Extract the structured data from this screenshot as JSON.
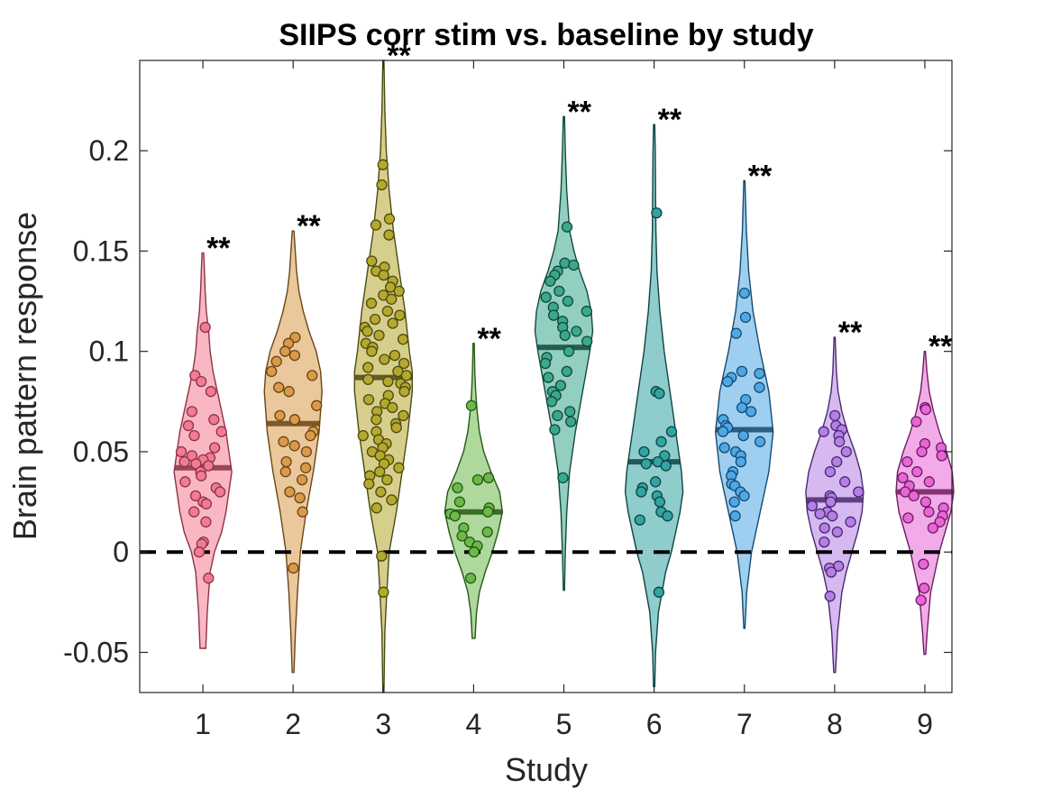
{
  "chart_data": {
    "type": "violin",
    "title": "SIIPS corr stim vs. baseline by study",
    "xlabel": "Study",
    "ylabel": "Brain pattern response",
    "ylim": [
      -0.07,
      0.245
    ],
    "xlim": [
      0.3,
      9.3
    ],
    "yticks": [
      -0.05,
      0,
      0.05,
      0.1,
      0.15,
      0.2
    ],
    "ytick_labels": [
      "-0.05",
      "0",
      "0.05",
      "0.1",
      "0.15",
      "0.2"
    ],
    "categories": [
      "1",
      "2",
      "3",
      "4",
      "5",
      "6",
      "7",
      "8",
      "9"
    ],
    "reference_line": {
      "y": 0,
      "style": "dashed"
    },
    "grid": false,
    "legend": "none",
    "studies": [
      {
        "name": "1",
        "color": "#f27b92",
        "dark": "#8c3347",
        "mean": 0.042,
        "sig": "**",
        "range": [
          -0.048,
          0.149
        ],
        "density": [
          [
            -0.048,
            0.1
          ],
          [
            -0.03,
            0.15
          ],
          [
            -0.01,
            0.25
          ],
          [
            0.0,
            0.4
          ],
          [
            0.01,
            0.65
          ],
          [
            0.02,
            0.8
          ],
          [
            0.03,
            0.9
          ],
          [
            0.04,
            1.0
          ],
          [
            0.05,
            0.9
          ],
          [
            0.06,
            0.8
          ],
          [
            0.07,
            0.65
          ],
          [
            0.08,
            0.5
          ],
          [
            0.09,
            0.35
          ],
          [
            0.1,
            0.25
          ],
          [
            0.11,
            0.2
          ],
          [
            0.12,
            0.12
          ],
          [
            0.13,
            0.08
          ],
          [
            0.149,
            0.03
          ]
        ],
        "points": [
          0.112,
          0.088,
          0.085,
          0.08,
          0.07,
          0.066,
          0.063,
          0.06,
          0.058,
          0.052,
          0.05,
          0.048,
          0.047,
          0.046,
          0.045,
          0.044,
          0.043,
          0.04,
          0.038,
          0.035,
          0.032,
          0.03,
          0.028,
          0.025,
          0.024,
          0.02,
          0.015,
          0.005,
          0.004,
          0.0,
          -0.013
        ]
      },
      {
        "name": "2",
        "color": "#d99b4a",
        "dark": "#6b4514",
        "mean": 0.064,
        "sig": "**",
        "range": [
          -0.06,
          0.16
        ],
        "density": [
          [
            -0.06,
            0.03
          ],
          [
            -0.04,
            0.08
          ],
          [
            -0.02,
            0.15
          ],
          [
            0.0,
            0.25
          ],
          [
            0.02,
            0.45
          ],
          [
            0.04,
            0.7
          ],
          [
            0.06,
            0.9
          ],
          [
            0.08,
            1.0
          ],
          [
            0.09,
            0.95
          ],
          [
            0.1,
            0.8
          ],
          [
            0.11,
            0.55
          ],
          [
            0.12,
            0.35
          ],
          [
            0.13,
            0.2
          ],
          [
            0.14,
            0.12
          ],
          [
            0.16,
            0.03
          ]
        ],
        "points": [
          0.107,
          0.104,
          0.1,
          0.098,
          0.095,
          0.09,
          0.088,
          0.082,
          0.08,
          0.073,
          0.068,
          0.066,
          0.06,
          0.058,
          0.055,
          0.053,
          0.05,
          0.045,
          0.042,
          0.04,
          0.036,
          0.03,
          0.027,
          0.02,
          -0.008
        ]
      },
      {
        "name": "3",
        "color": "#b5a82e",
        "dark": "#4d4a10",
        "mean": 0.087,
        "sig": "**",
        "range": [
          -0.07,
          0.245
        ],
        "density": [
          [
            -0.07,
            0.02
          ],
          [
            -0.04,
            0.05
          ],
          [
            -0.02,
            0.12
          ],
          [
            0.0,
            0.2
          ],
          [
            0.02,
            0.45
          ],
          [
            0.04,
            0.65
          ],
          [
            0.06,
            0.85
          ],
          [
            0.08,
            1.0
          ],
          [
            0.09,
            1.0
          ],
          [
            0.1,
            0.9
          ],
          [
            0.12,
            0.75
          ],
          [
            0.14,
            0.55
          ],
          [
            0.16,
            0.35
          ],
          [
            0.18,
            0.2
          ],
          [
            0.2,
            0.1
          ],
          [
            0.22,
            0.05
          ],
          [
            0.245,
            0.02
          ]
        ],
        "points": [
          0.193,
          0.183,
          0.166,
          0.163,
          0.158,
          0.145,
          0.142,
          0.14,
          0.138,
          0.135,
          0.132,
          0.13,
          0.128,
          0.126,
          0.124,
          0.12,
          0.118,
          0.116,
          0.114,
          0.112,
          0.11,
          0.108,
          0.106,
          0.104,
          0.102,
          0.1,
          0.098,
          0.096,
          0.094,
          0.092,
          0.09,
          0.088,
          0.086,
          0.085,
          0.084,
          0.082,
          0.08,
          0.078,
          0.076,
          0.074,
          0.072,
          0.07,
          0.068,
          0.066,
          0.064,
          0.062,
          0.06,
          0.058,
          0.056,
          0.054,
          0.052,
          0.05,
          0.048,
          0.046,
          0.044,
          0.042,
          0.04,
          0.038,
          0.036,
          0.034,
          0.03,
          0.026,
          0.022,
          -0.002,
          -0.02
        ]
      },
      {
        "name": "4",
        "color": "#6cb84a",
        "dark": "#245a14",
        "mean": 0.02,
        "sig": "**",
        "range": [
          -0.043,
          0.104
        ],
        "density": [
          [
            -0.043,
            0.05
          ],
          [
            -0.03,
            0.1
          ],
          [
            -0.02,
            0.2
          ],
          [
            -0.01,
            0.4
          ],
          [
            0.0,
            0.65
          ],
          [
            0.01,
            0.85
          ],
          [
            0.02,
            1.0
          ],
          [
            0.03,
            0.9
          ],
          [
            0.04,
            0.6
          ],
          [
            0.05,
            0.35
          ],
          [
            0.06,
            0.2
          ],
          [
            0.07,
            0.12
          ],
          [
            0.08,
            0.07
          ],
          [
            0.09,
            0.04
          ],
          [
            0.104,
            0.02
          ]
        ],
        "points": [
          0.073,
          0.037,
          0.036,
          0.032,
          0.025,
          0.022,
          0.02,
          0.019,
          0.018,
          0.012,
          0.01,
          0.008,
          0.005,
          0.003,
          0.0,
          -0.013
        ]
      },
      {
        "name": "5",
        "color": "#3aa88c",
        "dark": "#104a3a",
        "mean": 0.102,
        "sig": "**",
        "range": [
          -0.019,
          0.217
        ],
        "density": [
          [
            -0.019,
            0.02
          ],
          [
            0.0,
            0.05
          ],
          [
            0.02,
            0.1
          ],
          [
            0.04,
            0.2
          ],
          [
            0.06,
            0.4
          ],
          [
            0.08,
            0.65
          ],
          [
            0.1,
            0.9
          ],
          [
            0.11,
            1.0
          ],
          [
            0.12,
            0.95
          ],
          [
            0.13,
            0.8
          ],
          [
            0.14,
            0.55
          ],
          [
            0.15,
            0.35
          ],
          [
            0.16,
            0.2
          ],
          [
            0.18,
            0.1
          ],
          [
            0.2,
            0.05
          ],
          [
            0.217,
            0.02
          ]
        ],
        "points": [
          0.162,
          0.144,
          0.143,
          0.14,
          0.138,
          0.135,
          0.13,
          0.127,
          0.125,
          0.122,
          0.12,
          0.118,
          0.115,
          0.112,
          0.11,
          0.108,
          0.105,
          0.1,
          0.097,
          0.094,
          0.09,
          0.087,
          0.083,
          0.08,
          0.078,
          0.075,
          0.07,
          0.068,
          0.065,
          0.061,
          0.037
        ]
      },
      {
        "name": "6",
        "color": "#33a3a3",
        "dark": "#0e4444",
        "mean": 0.045,
        "sig": "**",
        "range": [
          -0.067,
          0.213
        ],
        "density": [
          [
            -0.067,
            0.02
          ],
          [
            -0.05,
            0.05
          ],
          [
            -0.03,
            0.15
          ],
          [
            -0.01,
            0.4
          ],
          [
            0.0,
            0.6
          ],
          [
            0.02,
            0.9
          ],
          [
            0.03,
            1.0
          ],
          [
            0.04,
            0.95
          ],
          [
            0.06,
            0.75
          ],
          [
            0.08,
            0.55
          ],
          [
            0.1,
            0.35
          ],
          [
            0.12,
            0.2
          ],
          [
            0.14,
            0.1
          ],
          [
            0.16,
            0.06
          ],
          [
            0.18,
            0.05
          ],
          [
            0.2,
            0.04
          ],
          [
            0.213,
            0.02
          ]
        ],
        "points": [
          0.169,
          0.08,
          0.079,
          0.06,
          0.055,
          0.05,
          0.048,
          0.045,
          0.044,
          0.043,
          0.035,
          0.032,
          0.03,
          0.028,
          0.025,
          0.02,
          0.018,
          0.016,
          -0.02
        ]
      },
      {
        "name": "7",
        "color": "#4ea8e6",
        "dark": "#164a70",
        "mean": 0.061,
        "sig": "**",
        "range": [
          -0.038,
          0.185
        ],
        "density": [
          [
            -0.038,
            0.02
          ],
          [
            -0.02,
            0.08
          ],
          [
            0.0,
            0.25
          ],
          [
            0.02,
            0.55
          ],
          [
            0.04,
            0.85
          ],
          [
            0.06,
            1.0
          ],
          [
            0.08,
            0.85
          ],
          [
            0.1,
            0.55
          ],
          [
            0.12,
            0.3
          ],
          [
            0.14,
            0.15
          ],
          [
            0.16,
            0.07
          ],
          [
            0.185,
            0.02
          ]
        ],
        "points": [
          0.129,
          0.117,
          0.109,
          0.09,
          0.089,
          0.087,
          0.085,
          0.082,
          0.076,
          0.072,
          0.07,
          0.066,
          0.063,
          0.062,
          0.06,
          0.058,
          0.055,
          0.052,
          0.05,
          0.048,
          0.045,
          0.04,
          0.038,
          0.034,
          0.033,
          0.03,
          0.028,
          0.025,
          0.018
        ]
      },
      {
        "name": "8",
        "color": "#b57fe6",
        "dark": "#4a2a6e",
        "mean": 0.026,
        "sig": "**",
        "range": [
          -0.06,
          0.107
        ],
        "density": [
          [
            -0.06,
            0.03
          ],
          [
            -0.04,
            0.1
          ],
          [
            -0.02,
            0.25
          ],
          [
            -0.01,
            0.4
          ],
          [
            0.0,
            0.6
          ],
          [
            0.01,
            0.8
          ],
          [
            0.02,
            0.95
          ],
          [
            0.03,
            1.0
          ],
          [
            0.04,
            0.9
          ],
          [
            0.05,
            0.7
          ],
          [
            0.06,
            0.45
          ],
          [
            0.07,
            0.25
          ],
          [
            0.08,
            0.12
          ],
          [
            0.09,
            0.06
          ],
          [
            0.107,
            0.02
          ]
        ],
        "points": [
          0.068,
          0.063,
          0.061,
          0.06,
          0.058,
          0.055,
          0.05,
          0.045,
          0.04,
          0.035,
          0.03,
          0.028,
          0.027,
          0.025,
          0.023,
          0.02,
          0.019,
          0.018,
          0.015,
          0.012,
          0.01,
          0.005,
          -0.007,
          -0.008,
          -0.01,
          -0.022
        ]
      },
      {
        "name": "9",
        "color": "#e866d6",
        "dark": "#6e1e62",
        "mean": 0.03,
        "sig": "**",
        "range": [
          -0.051,
          0.1
        ],
        "density": [
          [
            -0.051,
            0.03
          ],
          [
            -0.04,
            0.08
          ],
          [
            -0.02,
            0.2
          ],
          [
            -0.01,
            0.35
          ],
          [
            0.0,
            0.5
          ],
          [
            0.01,
            0.7
          ],
          [
            0.02,
            0.9
          ],
          [
            0.03,
            1.0
          ],
          [
            0.04,
            0.95
          ],
          [
            0.05,
            0.75
          ],
          [
            0.06,
            0.5
          ],
          [
            0.07,
            0.3
          ],
          [
            0.08,
            0.15
          ],
          [
            0.09,
            0.07
          ],
          [
            0.1,
            0.02
          ]
        ],
        "points": [
          0.072,
          0.071,
          0.065,
          0.054,
          0.052,
          0.05,
          0.048,
          0.045,
          0.04,
          0.037,
          0.035,
          0.033,
          0.03,
          0.028,
          0.025,
          0.022,
          0.02,
          0.018,
          0.017,
          0.015,
          0.012,
          -0.006,
          -0.018,
          -0.024
        ]
      }
    ]
  }
}
